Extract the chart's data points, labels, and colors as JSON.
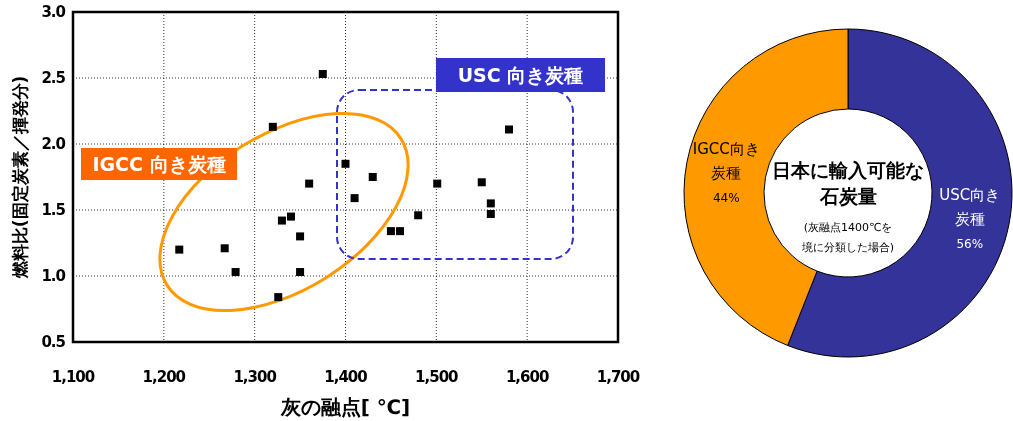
{
  "chart_data": [
    {
      "type": "scatter",
      "xlabel": "灰の融点[ ℃]",
      "ylabel": "燃料比(固定炭素／揮発分)",
      "xlim": [
        1100,
        1700
      ],
      "xticks": [
        {
          "value": 1100,
          "label": "1,100"
        },
        {
          "value": 1200,
          "label": "1,200"
        },
        {
          "value": 1300,
          "label": "1,300"
        },
        {
          "value": 1400,
          "label": "1,400"
        },
        {
          "value": 1500,
          "label": "1,500"
        },
        {
          "value": 1600,
          "label": "1,600"
        },
        {
          "value": 1700,
          "label": "1,700"
        }
      ],
      "ylim": [
        0.5,
        3.0
      ],
      "yticks": [
        {
          "value": 0.5,
          "label": "0.5"
        },
        {
          "value": 1.0,
          "label": "1.0"
        },
        {
          "value": 1.5,
          "label": "1.5"
        },
        {
          "value": 2.0,
          "label": "2.0"
        },
        {
          "value": 2.5,
          "label": "2.5"
        },
        {
          "value": 3.0,
          "label": "3.0"
        }
      ],
      "grid": true,
      "marker": "square",
      "annotations": [
        "IGCC 向き炭種",
        "USC 向き炭種"
      ],
      "series": [
        {
          "color": "#000000",
          "x": [
            1217,
            1267,
            1279,
            1320,
            1330,
            1340,
            1350,
            1350,
            1326,
            1360,
            1375,
            1400,
            1430,
            1410,
            1501,
            1550,
            1560,
            1560,
            1580,
            1480,
            1450,
            1460
          ],
          "values": [
            1.2,
            1.21,
            1.03,
            2.13,
            1.42,
            1.45,
            1.3,
            1.03,
            0.84,
            1.7,
            2.53,
            1.85,
            1.75,
            1.59,
            1.7,
            1.71,
            1.55,
            1.47,
            2.11,
            1.46,
            1.34,
            1.34
          ]
        }
      ]
    },
    {
      "type": "donut",
      "title": "日本に輸入可能な石炭量",
      "subtitle": "(灰融点1400℃を境に分類した場合)",
      "categories": [
        "USC向き炭種",
        "IGCC向き炭種"
      ],
      "values": [
        56,
        44
      ],
      "colors": [
        "#333399",
        "#ff9900"
      ],
      "value_labels": [
        "56%",
        "44%"
      ]
    }
  ]
}
